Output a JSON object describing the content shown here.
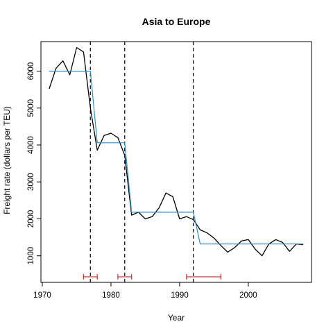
{
  "chart_data": {
    "type": "line",
    "title": "Asia to Europe",
    "xlabel": "Year",
    "ylabel": "Freight rate (dollars per TEU)",
    "xlim": [
      1969.8,
      2009.2
    ],
    "ylim": [
      280,
      6800
    ],
    "x_ticks": [
      1970,
      1980,
      1990,
      2000
    ],
    "y_ticks": [
      1000,
      2000,
      3000,
      4000,
      5000,
      6000
    ],
    "grid": false,
    "legend": "none",
    "series": [
      {
        "color": "#000000",
        "style": "solid",
        "x": [
          1971,
          1972,
          1973,
          1974,
          1975,
          1976,
          1977,
          1978,
          1979,
          1980,
          1981,
          1982,
          1983,
          1984,
          1985,
          1986,
          1987,
          1988,
          1989,
          1990,
          1991,
          1992,
          1993,
          1994,
          1995,
          1996,
          1997,
          1998,
          1999,
          2000,
          2001,
          2002,
          2003,
          2004,
          2005,
          2006,
          2007,
          2008
        ],
        "y": [
          5520,
          6080,
          6280,
          5900,
          6640,
          6520,
          5000,
          3860,
          4260,
          4320,
          4200,
          3720,
          2100,
          2180,
          2000,
          2060,
          2300,
          2700,
          2600,
          2000,
          2060,
          1980,
          1700,
          1620,
          1480,
          1280,
          1100,
          1220,
          1400,
          1440,
          1180,
          1000,
          1320,
          1440,
          1360,
          1120,
          1320,
          1300
        ]
      },
      {
        "color": "#2a8ec9",
        "style": "solid",
        "x": [
          1971,
          1977,
          1978,
          1982,
          1983,
          1992,
          1993,
          2008
        ],
        "y": [
          6000,
          6000,
          4060,
          4060,
          2180,
          2180,
          1320,
          1320
        ]
      }
    ],
    "breakpoints": [
      1977,
      1982,
      1992
    ],
    "confidence_intervals": [
      [
        1976,
        1978
      ],
      [
        1981,
        1983
      ],
      [
        1991,
        1996
      ]
    ],
    "colors": {
      "line": "#000000",
      "fit": "#2a8ec9",
      "breakpoint": "#000000",
      "interval": "#cc3333"
    }
  }
}
